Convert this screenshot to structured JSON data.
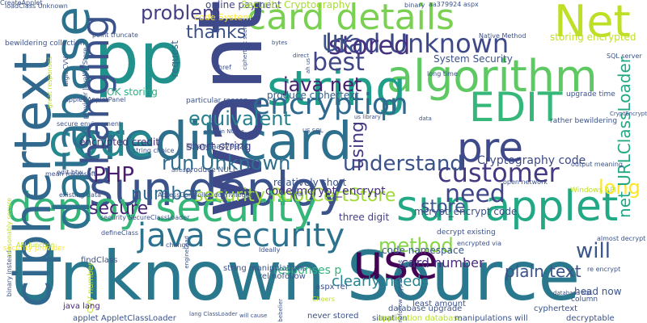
{
  "words": [
    {
      "text": "Unknown Source",
      "color": "#2a788e"
    },
    {
      "text": "credit card",
      "color": "#2d708e"
    },
    {
      "text": "sun deploy",
      "color": "#3b528b"
    },
    {
      "text": "pp",
      "color": "#21918c"
    },
    {
      "text": "algorithm",
      "color": "#5ec962"
    },
    {
      "text": "code",
      "color": "#23898e"
    },
    {
      "text": "card details",
      "color": "#7ad151"
    },
    {
      "text": "deploy security",
      "color": "#35b779"
    },
    {
      "text": "sun applet",
      "color": "#22a884"
    },
    {
      "text": "Net",
      "color": "#bddf26"
    },
    {
      "text": "want",
      "color": "#3e4989"
    },
    {
      "text": "use",
      "color": "#440154"
    },
    {
      "text": "string",
      "color": "#1f9e89"
    },
    {
      "text": "database",
      "color": "#2c728e"
    },
    {
      "text": "ciphertext",
      "color": "#31688e"
    },
    {
      "text": "encryption",
      "color": "#30698e"
    },
    {
      "text": "EDIT",
      "color": "#35b779"
    },
    {
      "text": "pre",
      "color": "#3e4a89"
    },
    {
      "text": "java security",
      "color": "#2c728e"
    },
    {
      "text": "changing",
      "color": "#3b528b"
    },
    {
      "text": "load Unknown",
      "color": "#3e4989"
    },
    {
      "text": "customer",
      "color": "#443983"
    },
    {
      "text": "best",
      "color": "#404688"
    },
    {
      "text": "stored",
      "color": "#46327e"
    },
    {
      "text": "p",
      "color": "#2e6f8e"
    },
    {
      "text": "PHP",
      "color": "#481f70"
    },
    {
      "text": "UK",
      "color": "#3b528b"
    },
    {
      "text": "need",
      "color": "#3f4788"
    },
    {
      "text": "problem",
      "color": "#433e85"
    },
    {
      "text": "java net",
      "color": "#482071"
    },
    {
      "text": "run Unknown",
      "color": "#2e6e8e"
    },
    {
      "text": "security RootCertStore",
      "color": "#a0da39"
    },
    {
      "text": "equivalent",
      "color": "#26828e"
    },
    {
      "text": "understand",
      "color": "#3b528b"
    },
    {
      "text": "thanks",
      "color": "#3b528b"
    },
    {
      "text": "number",
      "color": "#2f6b8e"
    },
    {
      "text": "secure",
      "color": "#482576"
    },
    {
      "text": "store",
      "color": "#3a548c"
    },
    {
      "text": "using",
      "color": "#443a83"
    },
    {
      "text": "long",
      "color": "#fde725"
    },
    {
      "text": "net URLClassLoader",
      "color": "#22a884"
    },
    {
      "text": "method",
      "color": "#86d549"
    },
    {
      "text": "will",
      "color": "#39568c"
    },
    {
      "text": "plain text",
      "color": "#3b528b"
    },
    {
      "text": "card number",
      "color": "#472d7b"
    },
    {
      "text": "clearly needs",
      "color": "#25848e"
    },
    {
      "text": "code namespace",
      "color": "#39568c"
    },
    {
      "text": "mcrypt_encrypt code",
      "color": "#3d4e8a"
    },
    {
      "text": "Cryptography code",
      "color": "#3e4989"
    },
    {
      "text": "code mcrypt_encrypt",
      "color": "#46307e"
    },
    {
      "text": "short string",
      "color": "#423f85"
    },
    {
      "text": "encrypted credit",
      "color": "#472c7a"
    },
    {
      "text": "OK storing",
      "color": "#2ab07f"
    },
    {
      "text": "online payment",
      "color": "#414487"
    },
    {
      "text": "Security Cryptography",
      "color": "#a8db34"
    },
    {
      "text": "System Security",
      "color": "#3b528b"
    },
    {
      "text": "produce ciphertext",
      "color": "#35608d"
    },
    {
      "text": "code System",
      "color": "#fde725"
    },
    {
      "text": "request",
      "color": "#31688e"
    },
    {
      "text": "storing encrypted",
      "color": "#c2df23"
    },
    {
      "text": "three digit",
      "color": "#433e85"
    },
    {
      "text": "relatively short",
      "color": "#3a548c"
    },
    {
      "text": "responses p",
      "color": "#2fb47c"
    },
    {
      "text": "head now",
      "color": "#3b528b"
    },
    {
      "text": "never stored",
      "color": "#3b528b"
    },
    {
      "text": "applet AppletClassLoader",
      "color": "#3b528b"
    },
    {
      "text": "CVV number",
      "color": "#bddf26"
    },
    {
      "text": "java lang",
      "color": "#482878"
    },
    {
      "text": "findClass",
      "color": "#3b528b"
    },
    {
      "text": "database upgrade",
      "color": "#3b528b"
    },
    {
      "text": "situation",
      "color": "#3b528b"
    },
    {
      "text": "decryptable",
      "color": "#3b528b"
    },
    {
      "text": "cyphertext",
      "color": "#3b528b"
    },
    {
      "text": "rel nofollow",
      "color": "#3b528b"
    },
    {
      "text": "aspx rel",
      "color": "#3b528b"
    },
    {
      "text": "least amount",
      "color": "#3b528b"
    },
    {
      "text": "string manipulations",
      "color": "#3b528b"
    },
    {
      "text": "application database",
      "color": "#b5de2b"
    },
    {
      "text": "manipulations will",
      "color": "#3b528b"
    },
    {
      "text": "column",
      "color": "#3b528b"
    },
    {
      "text": "produce NULL",
      "color": "#3b528b"
    },
    {
      "text": "Windows API",
      "color": "#bddf26"
    },
    {
      "text": "decrypt existing",
      "color": "#3b528b"
    },
    {
      "text": "library aa379924",
      "color": "#3b528b"
    },
    {
      "text": "particular reason",
      "color": "#3b528b"
    },
    {
      "text": "rather bewildering",
      "color": "#3b528b"
    },
    {
      "text": "upgrade time",
      "color": "#3b528b"
    },
    {
      "text": "secure environment",
      "color": "#3b528b"
    },
    {
      "text": "long time",
      "color": "#3b528b"
    },
    {
      "text": "output meaning",
      "color": "#3b528b"
    },
    {
      "text": "SQL server",
      "color": "#3b528b"
    },
    {
      "text": "aa379924 aspx",
      "color": "#3b528b"
    },
    {
      "text": "binary",
      "color": "#3b528b"
    },
    {
      "text": "string choice",
      "color": "#3b528b"
    },
    {
      "text": "point truncate",
      "color": "#3b528b"
    },
    {
      "text": "bewildering collection",
      "color": "#3b528b"
    },
    {
      "text": "Native Method",
      "color": "#3b528b"
    },
    {
      "text": "digit CVV",
      "color": "#3b528b"
    },
    {
      "text": "great responses",
      "color": "#bddf26"
    },
    {
      "text": "provider JavaKeyStore",
      "color": "#3b528b"
    },
    {
      "text": "loadClass Unknown",
      "color": "#3b528b"
    },
    {
      "text": "ciphertext seems",
      "color": "#3b528b"
    },
    {
      "text": "applet AppletPanel",
      "color": "#3b528b"
    },
    {
      "text": "security provider",
      "color": "#fde725"
    },
    {
      "text": "security SecureClassLoader",
      "color": "#3b528b"
    },
    {
      "text": "AccessController doPrivileged",
      "color": "#3b528b"
    },
    {
      "text": "defineClass",
      "color": "#3b528b"
    },
    {
      "text": "open network",
      "color": "#3b528b"
    },
    {
      "text": "Cheers",
      "color": "#bddf26"
    },
    {
      "text": "API function",
      "color": "#bddf26"
    },
    {
      "text": "encrypted via",
      "color": "#3b528b"
    },
    {
      "text": "existing data",
      "color": "#3b528b"
    },
    {
      "text": "edit btw",
      "color": "#3b528b"
    },
    {
      "text": "mean microsoft",
      "color": "#3b528b"
    },
    {
      "text": "binary instead",
      "color": "#3b528b"
    },
    {
      "text": "reasonably secure",
      "color": "#bddf26"
    },
    {
      "text": "database SQL",
      "color": "#3b528b"
    },
    {
      "text": "change",
      "color": "#3b528b"
    },
    {
      "text": "href",
      "color": "#3b528b"
    },
    {
      "text": "direct",
      "color": "#3b528b"
    },
    {
      "text": "deal",
      "color": "#3b528b"
    },
    {
      "text": "Ideally",
      "color": "#3b528b"
    },
    {
      "text": "engineLoad",
      "color": "#3b528b"
    },
    {
      "text": "almost decrypt",
      "color": "#3b528b"
    },
    {
      "text": "re encrypt",
      "color": "#3b528b"
    },
    {
      "text": "will cause",
      "color": "#3b528b"
    },
    {
      "text": "lang ClassLoader",
      "color": "#3b528b"
    },
    {
      "text": "nofollow CryptEncrypt",
      "color": "#3b528b"
    },
    {
      "text": "bebelier",
      "color": "#3b528b"
    },
    {
      "text": "data",
      "color": "#3b528b"
    },
    {
      "text": "us library",
      "color": "#3b528b"
    },
    {
      "text": "CryptEncrypt",
      "color": "#3b528b"
    },
    {
      "text": "already",
      "color": "#3b528b"
    },
    {
      "text": "contain NULLs",
      "color": "#3b528b"
    },
    {
      "text": "US SQL",
      "color": "#3b528b"
    },
    {
      "text": "bytes",
      "color": "#3b528b"
    },
    {
      "text": "ah us",
      "color": "#3b528b"
    },
    {
      "text": "CreateApplet",
      "color": "#3b528b"
    }
  ]
}
